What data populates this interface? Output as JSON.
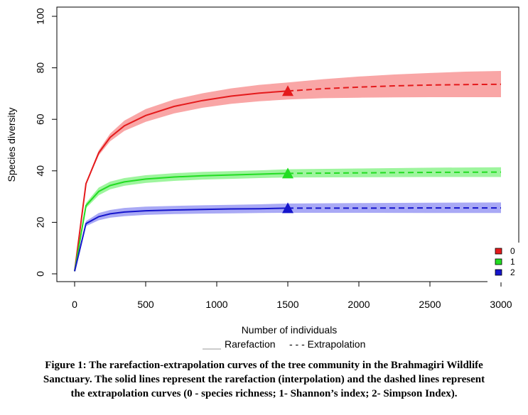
{
  "chart_data": {
    "type": "line",
    "title": "",
    "xlabel": "Number of individuals",
    "ylabel": "Species diversity",
    "xlim": [
      0,
      3000
    ],
    "ylim": [
      0,
      100
    ],
    "x_ticks": [
      "0",
      "500",
      "1000",
      "1500",
      "2000",
      "2500",
      "3000"
    ],
    "y_ticks": [
      "0",
      "20",
      "40",
      "60",
      "80",
      "100"
    ],
    "reference_sample_size": 1500,
    "legend": {
      "placement": "bottom-right",
      "entries": [
        "0",
        "1",
        "2"
      ]
    },
    "line_legend": {
      "rarefaction": "Rarefaction",
      "extrapolation": "- - - Extrapolation"
    },
    "series": [
      {
        "name": "0",
        "color": "#e41a1c",
        "band_color": "#f9a6a6",
        "observed": [
          1500,
          71
        ],
        "rarefaction": [
          [
            0,
            1
          ],
          [
            80,
            35
          ],
          [
            170,
            47
          ],
          [
            250,
            53
          ],
          [
            350,
            57.5
          ],
          [
            500,
            61.5
          ],
          [
            700,
            65
          ],
          [
            900,
            67.3
          ],
          [
            1100,
            69
          ],
          [
            1300,
            70.2
          ],
          [
            1500,
            71
          ]
        ],
        "extrapolation": [
          [
            1500,
            71
          ],
          [
            1750,
            71.9
          ],
          [
            2000,
            72.5
          ],
          [
            2250,
            73
          ],
          [
            2500,
            73.3
          ],
          [
            2750,
            73.5
          ],
          [
            3000,
            73.6
          ]
        ],
        "ci_lower": [
          [
            0,
            1
          ],
          [
            80,
            35
          ],
          [
            170,
            46
          ],
          [
            250,
            51.5
          ],
          [
            350,
            55.5
          ],
          [
            500,
            59
          ],
          [
            700,
            62.3
          ],
          [
            900,
            64.5
          ],
          [
            1100,
            66
          ],
          [
            1300,
            67
          ],
          [
            1500,
            67.7
          ],
          [
            1750,
            68.2
          ],
          [
            2000,
            68.4
          ],
          [
            2250,
            68.5
          ],
          [
            2500,
            68.6
          ],
          [
            2750,
            68.6
          ],
          [
            3000,
            68.6
          ]
        ],
        "ci_upper": [
          [
            0,
            1
          ],
          [
            80,
            35.5
          ],
          [
            170,
            48
          ],
          [
            250,
            54.5
          ],
          [
            350,
            59.5
          ],
          [
            500,
            64
          ],
          [
            700,
            67.7
          ],
          [
            900,
            70.1
          ],
          [
            1100,
            72
          ],
          [
            1300,
            73.4
          ],
          [
            1500,
            74.3
          ],
          [
            1750,
            75.6
          ],
          [
            2000,
            76.6
          ],
          [
            2250,
            77.4
          ],
          [
            2500,
            78
          ],
          [
            2750,
            78.5
          ],
          [
            3000,
            78.8
          ]
        ]
      },
      {
        "name": "1",
        "color": "#22dd22",
        "band_color": "#9ef59e",
        "observed": [
          1500,
          39
        ],
        "rarefaction": [
          [
            0,
            1
          ],
          [
            80,
            26.5
          ],
          [
            170,
            32
          ],
          [
            250,
            34.3
          ],
          [
            350,
            35.7
          ],
          [
            500,
            36.8
          ],
          [
            700,
            37.6
          ],
          [
            900,
            38.1
          ],
          [
            1100,
            38.4
          ],
          [
            1300,
            38.7
          ],
          [
            1500,
            39
          ]
        ],
        "extrapolation": [
          [
            1500,
            39
          ],
          [
            2000,
            39.2
          ],
          [
            2500,
            39.4
          ],
          [
            3000,
            39.5
          ]
        ],
        "ci_lower": [
          [
            0,
            1
          ],
          [
            80,
            25.5
          ],
          [
            170,
            30.5
          ],
          [
            250,
            32.8
          ],
          [
            350,
            34.2
          ],
          [
            500,
            35.3
          ],
          [
            700,
            36.1
          ],
          [
            900,
            36.6
          ],
          [
            1100,
            36.9
          ],
          [
            1300,
            37.2
          ],
          [
            1500,
            37.4
          ],
          [
            2000,
            37.5
          ],
          [
            2500,
            37.6
          ],
          [
            3000,
            37.6
          ]
        ],
        "ci_upper": [
          [
            0,
            1
          ],
          [
            80,
            27.5
          ],
          [
            170,
            33.5
          ],
          [
            250,
            35.8
          ],
          [
            350,
            37.2
          ],
          [
            500,
            38.3
          ],
          [
            700,
            39.1
          ],
          [
            900,
            39.6
          ],
          [
            1100,
            39.9
          ],
          [
            1300,
            40.2
          ],
          [
            1500,
            40.6
          ],
          [
            2000,
            40.9
          ],
          [
            2500,
            41.2
          ],
          [
            3000,
            41.4
          ]
        ]
      },
      {
        "name": "2",
        "color": "#1515cc",
        "band_color": "#a9a9f5",
        "observed": [
          1500,
          25.5
        ],
        "rarefaction": [
          [
            0,
            1
          ],
          [
            80,
            19.5
          ],
          [
            170,
            22.2
          ],
          [
            250,
            23.3
          ],
          [
            350,
            24
          ],
          [
            500,
            24.5
          ],
          [
            700,
            24.8
          ],
          [
            900,
            25
          ],
          [
            1100,
            25.2
          ],
          [
            1300,
            25.3
          ],
          [
            1500,
            25.5
          ]
        ],
        "extrapolation": [
          [
            1500,
            25.5
          ],
          [
            2000,
            25.5
          ],
          [
            2500,
            25.6
          ],
          [
            3000,
            25.6
          ]
        ],
        "ci_lower": [
          [
            0,
            1
          ],
          [
            80,
            18.5
          ],
          [
            170,
            20.8
          ],
          [
            250,
            21.8
          ],
          [
            350,
            22.4
          ],
          [
            500,
            22.9
          ],
          [
            700,
            23.2
          ],
          [
            900,
            23.4
          ],
          [
            1100,
            23.5
          ],
          [
            1300,
            23.6
          ],
          [
            1500,
            23.7
          ],
          [
            2000,
            23.7
          ],
          [
            2500,
            23.6
          ],
          [
            3000,
            23.6
          ]
        ],
        "ci_upper": [
          [
            0,
            1
          ],
          [
            80,
            20.5
          ],
          [
            170,
            23.6
          ],
          [
            250,
            24.8
          ],
          [
            350,
            25.6
          ],
          [
            500,
            26.1
          ],
          [
            700,
            26.4
          ],
          [
            900,
            26.6
          ],
          [
            1100,
            26.8
          ],
          [
            1300,
            27
          ],
          [
            1500,
            27.3
          ],
          [
            2000,
            27.5
          ],
          [
            2500,
            27.6
          ],
          [
            3000,
            27.7
          ]
        ]
      }
    ]
  },
  "caption": {
    "line1": "Figure 1: The rarefaction-extrapolation curves of the tree community in the Brahmagiri Wildlife",
    "line2": "Sanctuary. The solid lines represent the rarefaction (interpolation) and the dashed lines represent",
    "line3": "the extrapolation curves (0 - species richness; 1- Shannon’s index; 2- Simpson Index)."
  }
}
